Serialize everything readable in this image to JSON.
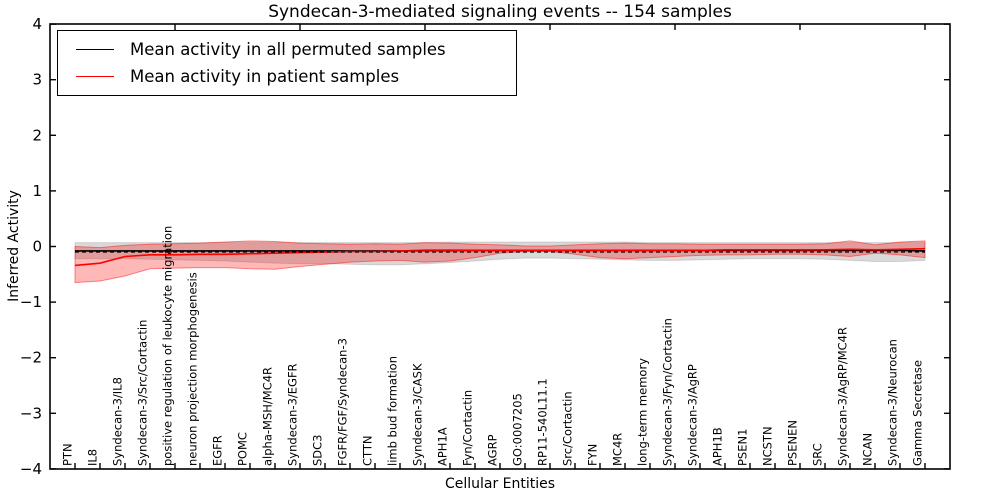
{
  "chart_data": {
    "type": "line",
    "title": "Syndecan-3-mediated signaling events -- 154 samples",
    "xlabel": "Cellular Entities",
    "ylabel": "Inferred Activity",
    "ylim": [
      -4,
      4
    ],
    "yticks": [
      -4,
      -3,
      -2,
      -1,
      0,
      1,
      2,
      3,
      4
    ],
    "grid": false,
    "legend_position": "upper left",
    "categories": [
      "PTN",
      "IL8",
      "Syndecan-3/IL8",
      "Syndecan-3/Src/Cortactin",
      "positive regulation of leukocyte migration",
      "neuron projection morphogenesis",
      "EGFR",
      "POMC",
      "alpha-MSH/MC4R",
      "Syndecan-3/EGFR",
      "SDC3",
      "FGFR/FGF/Syndecan-3",
      "CTTN",
      "limb bud formation",
      "Syndecan-3/CASK",
      "APH1A",
      "Fyn/Cortactin",
      "AGRP",
      "GO:0007205",
      "RP11-540L11.1",
      "Src/Cortactin",
      "FYN",
      "MC4R",
      "long-term memory",
      "Syndecan-3/Fyn/Cortactin",
      "Syndecan-3/AgRP",
      "APH1B",
      "PSEN1",
      "NCSTN",
      "PSENEN",
      "SRC",
      "Syndecan-3/AgRP/MC4R",
      "NCAN",
      "Syndecan-3/Neurocan",
      "Gamma Secretase"
    ],
    "series": [
      {
        "name": "Mean activity in all permuted samples",
        "color": "#000000",
        "style": "solid",
        "values": [
          -0.08,
          -0.08,
          -0.08,
          -0.08,
          -0.08,
          -0.08,
          -0.08,
          -0.08,
          -0.08,
          -0.08,
          -0.08,
          -0.08,
          -0.08,
          -0.08,
          -0.07,
          -0.07,
          -0.07,
          -0.07,
          -0.07,
          -0.07,
          -0.07,
          -0.07,
          -0.07,
          -0.07,
          -0.07,
          -0.07,
          -0.07,
          -0.07,
          -0.07,
          -0.07,
          -0.07,
          -0.07,
          -0.07,
          -0.07,
          -0.08
        ]
      },
      {
        "name": "Mean activity in patient samples",
        "color": "#ff0000",
        "style": "solid",
        "values": [
          -0.34,
          -0.3,
          -0.18,
          -0.15,
          -0.15,
          -0.14,
          -0.14,
          -0.13,
          -0.12,
          -0.11,
          -0.1,
          -0.09,
          -0.09,
          -0.08,
          -0.08,
          -0.08,
          -0.07,
          -0.07,
          -0.07,
          -0.07,
          -0.07,
          -0.07,
          -0.07,
          -0.07,
          -0.07,
          -0.07,
          -0.06,
          -0.06,
          -0.06,
          -0.06,
          -0.06,
          -0.05,
          -0.06,
          -0.05,
          -0.04
        ]
      }
    ],
    "bands": [
      {
        "name": "permuted-samples-range",
        "fill": "rgba(0,0,0,0.15)",
        "edge": "rgba(0,0,0,0.12)",
        "upper": [
          0.07,
          0.07,
          0.07,
          0.07,
          0.07,
          0.07,
          0.07,
          0.07,
          0.07,
          0.07,
          0.07,
          0.07,
          0.07,
          0.07,
          0.07,
          0.08,
          0.08,
          0.08,
          0.08,
          0.08,
          0.08,
          0.08,
          0.08,
          0.07,
          0.07,
          0.07,
          0.07,
          0.07,
          0.07,
          0.07,
          0.07,
          0.07,
          0.07,
          0.07,
          0.07
        ],
        "lower": [
          -0.22,
          -0.22,
          -0.22,
          -0.23,
          -0.24,
          -0.25,
          -0.26,
          -0.28,
          -0.3,
          -0.31,
          -0.31,
          -0.32,
          -0.33,
          -0.33,
          -0.31,
          -0.29,
          -0.26,
          -0.23,
          -0.21,
          -0.21,
          -0.22,
          -0.23,
          -0.24,
          -0.25,
          -0.25,
          -0.24,
          -0.23,
          -0.22,
          -0.22,
          -0.22,
          -0.23,
          -0.25,
          -0.27,
          -0.27,
          -0.25
        ]
      },
      {
        "name": "patient-samples-range",
        "fill": "rgba(255,0,0,0.28)",
        "edge": "rgba(255,0,0,0.45)",
        "upper": [
          0.0,
          -0.02,
          0.02,
          0.04,
          0.05,
          0.06,
          0.08,
          0.1,
          0.09,
          0.06,
          0.05,
          0.04,
          0.05,
          0.04,
          0.07,
          0.06,
          0.04,
          0.03,
          0.01,
          0.01,
          0.03,
          0.05,
          0.06,
          0.05,
          0.05,
          0.04,
          0.04,
          0.04,
          0.04,
          0.04,
          0.05,
          0.1,
          0.03,
          0.08,
          0.1
        ],
        "lower": [
          -0.65,
          -0.62,
          -0.53,
          -0.4,
          -0.39,
          -0.38,
          -0.38,
          -0.4,
          -0.41,
          -0.36,
          -0.32,
          -0.28,
          -0.26,
          -0.25,
          -0.28,
          -0.26,
          -0.2,
          -0.12,
          -0.09,
          -0.09,
          -0.14,
          -0.2,
          -0.22,
          -0.2,
          -0.18,
          -0.16,
          -0.15,
          -0.15,
          -0.14,
          -0.14,
          -0.15,
          -0.18,
          -0.12,
          -0.15,
          -0.2
        ]
      }
    ],
    "baseline": {
      "style": "dashed",
      "color": "#000000",
      "value": -0.1
    }
  }
}
